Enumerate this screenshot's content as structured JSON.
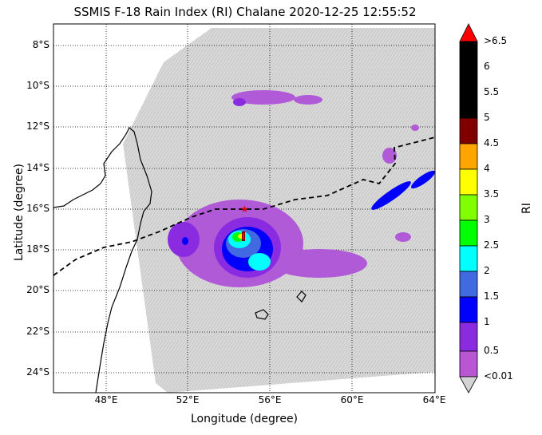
{
  "title": "SSMIS F-18 Rain Index (RI) Chalane 2020-12-25 12:55:52",
  "xlabel": "Longitude (degree)",
  "ylabel": "Latitude (degree)",
  "x_ticks": [
    "48°E",
    "52°E",
    "56°E",
    "60°E",
    "64°E"
  ],
  "y_ticks": [
    "8°S",
    "10°S",
    "12°S",
    "14°S",
    "16°S",
    "18°S",
    "20°S",
    "22°S",
    "24°S"
  ],
  "colorbar": {
    "label": "RI",
    "ticks": [
      ">6.5",
      "6",
      "5.5",
      "5",
      "4.5",
      "4",
      "3.5",
      "3",
      "2.5",
      "2",
      "1.5",
      "1",
      "0.5",
      "<0.01"
    ],
    "colors": [
      "#ff0000",
      "#000000",
      "#000000",
      "#000000",
      "#800000",
      "#ffa500",
      "#ffff00",
      "#7fff00",
      "#00ff00",
      "#00ffff",
      "#4169e1",
      "#0000ff",
      "#8a2be2",
      "#ba55d3",
      "#d3d3d3"
    ]
  },
  "storm_marker": {
    "label": "Chalane storm center",
    "lon": 54.6,
    "lat": -16.0
  }
}
